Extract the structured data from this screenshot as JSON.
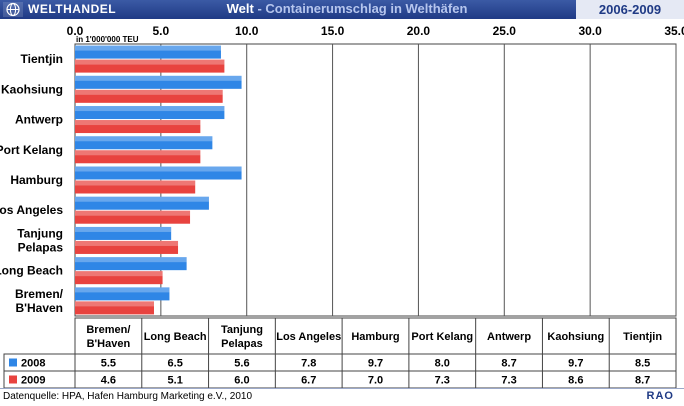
{
  "header": {
    "section": "WELTHANDEL",
    "title_main": "Welt",
    "title_sub": " - Containerumschlag in Welthäfen",
    "years": "2006-2009"
  },
  "chart_data": {
    "type": "bar",
    "orientation": "horizontal",
    "unit_label": "in 1'000'000 TEU",
    "xlim": [
      0,
      35
    ],
    "x_ticks": [
      "0.0",
      "5.0",
      "10.0",
      "15.0",
      "20.0",
      "25.0",
      "30.0",
      "35.0"
    ],
    "grid": true,
    "categories": [
      "Tientjin",
      "Kaohsiung",
      "Antwerp",
      "Port Kelang",
      "Hamburg",
      "Los Angeles",
      "Tanjung\nPelapas",
      "Long Beach",
      "Bremen/\nB'Haven"
    ],
    "series": [
      {
        "name": "2008",
        "color": "#2f86e6",
        "values": [
          8.5,
          9.7,
          8.7,
          8.0,
          9.7,
          7.8,
          5.6,
          6.5,
          5.5
        ]
      },
      {
        "name": "2009",
        "color": "#e8433f",
        "values": [
          8.7,
          8.6,
          7.3,
          7.3,
          7.0,
          6.7,
          6.0,
          5.1,
          4.6
        ]
      }
    ],
    "table": {
      "columns": [
        "Bremen/\nB'Haven",
        "Long Beach",
        "Tanjung\nPelapas",
        "Los Angeles",
        "Hamburg",
        "Port Kelang",
        "Antwerp",
        "Kaohsiung",
        "Tientjin"
      ],
      "rows": [
        {
          "label": "2008",
          "values": [
            "5.5",
            "6.5",
            "5.6",
            "7.8",
            "9.7",
            "8.0",
            "8.7",
            "9.7",
            "8.5"
          ]
        },
        {
          "label": "2009",
          "values": [
            "4.6",
            "5.1",
            "6.0",
            "6.7",
            "7.0",
            "7.3",
            "7.3",
            "8.6",
            "8.7"
          ]
        }
      ]
    }
  },
  "footer": {
    "source": "Datenquelle: HPA, Hafen Hamburg Marketing e.V., 2010",
    "brand": "RAO"
  }
}
